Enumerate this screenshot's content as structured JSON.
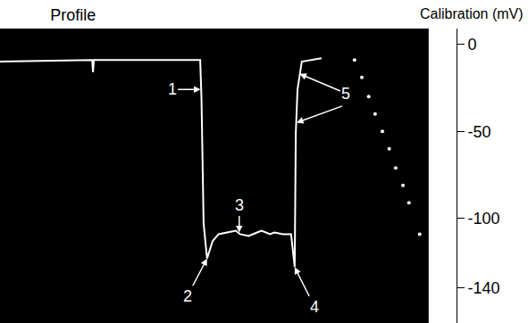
{
  "chart_data": {
    "type": "line",
    "title": "Profile",
    "y_label": "Calibration (mV)",
    "tick_labels": "y",
    "grid": false,
    "xlim": [
      0,
      100
    ],
    "ylim": [
      -160,
      9
    ],
    "yticks": [
      0,
      -50,
      -100,
      -140
    ],
    "series": [
      {
        "type": "line",
        "color": "#ffffff",
        "marker": "none",
        "line_style": "solid",
        "x": [
          0,
          21,
          21.5,
          21.7,
          21.9,
          46.7,
          47,
          47.5,
          48.3,
          49.6,
          51,
          53,
          55,
          56,
          58,
          60,
          61,
          63,
          64,
          66,
          67.9,
          68.75,
          69,
          69.4,
          70.4,
          75
        ],
        "values": [
          -10,
          -9,
          -9,
          -16,
          -9,
          -9,
          -31,
          -103,
          -123,
          -113,
          -109,
          -108,
          -107,
          -109,
          -110,
          -108,
          -107,
          -109,
          -108,
          -109,
          -109,
          -128,
          -51,
          -26,
          -10,
          -8
        ]
      },
      {
        "type": "scatter",
        "color": "#ffffff",
        "marker": "circle",
        "line_style": "none",
        "x": [
          82.7,
          84.4,
          86,
          87.5,
          89.2,
          90.8,
          92.3,
          94,
          95.4,
          97.9
        ],
        "values": [
          -9,
          -19,
          -30,
          -40,
          -50,
          -60,
          -71,
          -81,
          -91,
          -109
        ]
      }
    ],
    "annotations": [
      {
        "text": "1",
        "points": [
          [
            46.8,
            -26
          ]
        ]
      },
      {
        "text": "2",
        "points": [
          [
            48.3,
            -123
          ]
        ]
      },
      {
        "text": "3",
        "points": [
          [
            55.8,
            -108
          ]
        ]
      },
      {
        "text": "4",
        "points": [
          [
            68.75,
            -128
          ]
        ]
      },
      {
        "text": "5",
        "points": [
          [
            69.9,
            -17
          ],
          [
            69.2,
            -45
          ]
        ]
      }
    ]
  }
}
